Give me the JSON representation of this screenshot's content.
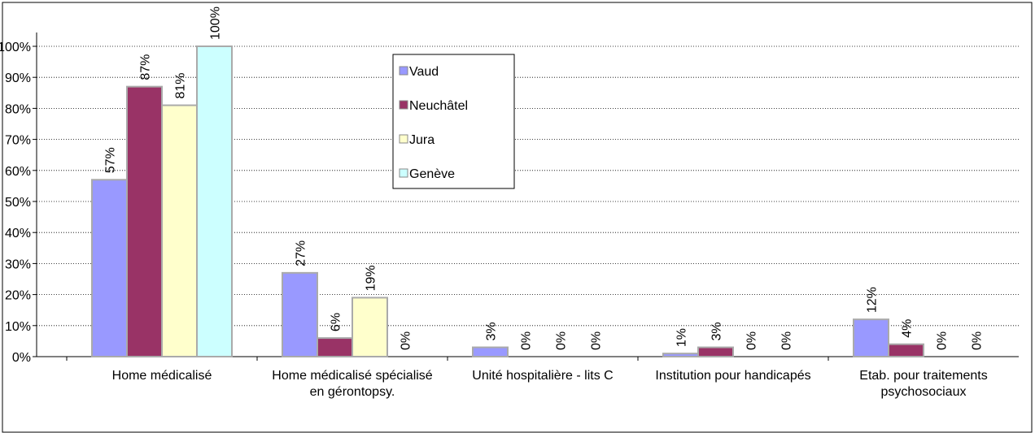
{
  "chart_data": {
    "type": "bar",
    "categories": [
      "Home médicalisé",
      "Home médicalisé spécialisé en gérontopsy.",
      "Unité hospitalière - lits C",
      "Institution pour handicapés",
      "Etab. pour traitements psychosociaux"
    ],
    "series": [
      {
        "name": "Vaud",
        "color": "#9999ff",
        "values": [
          57,
          27,
          3,
          1,
          12
        ],
        "value_labels": [
          "57%",
          "27%",
          "3%",
          "1%",
          "12%"
        ]
      },
      {
        "name": "Neuchâtel",
        "color": "#993366",
        "values": [
          87,
          6,
          0,
          3,
          4
        ],
        "value_labels": [
          "87%",
          "6%",
          "0%",
          "3%",
          "4%"
        ]
      },
      {
        "name": "Jura",
        "color": "#ffffcc",
        "values": [
          81,
          19,
          0,
          0,
          0
        ],
        "value_labels": [
          "81%",
          "19%",
          "0%",
          "0%",
          "0%"
        ]
      },
      {
        "name": "Genève",
        "color": "#ccffff",
        "values": [
          100,
          0,
          0,
          0,
          0
        ],
        "value_labels": [
          "100%",
          "0%",
          "0%",
          "0%",
          "0%"
        ]
      }
    ],
    "ylim": [
      0,
      100
    ],
    "yticks": [
      {
        "value": 0,
        "label": "0%"
      },
      {
        "value": 10,
        "label": "10%"
      },
      {
        "value": 20,
        "label": "20%"
      },
      {
        "value": 30,
        "label": "30%"
      },
      {
        "value": 40,
        "label": "40%"
      },
      {
        "value": 50,
        "label": "50%"
      },
      {
        "value": 60,
        "label": "60%"
      },
      {
        "value": 70,
        "label": "70%"
      },
      {
        "value": 80,
        "label": "80%"
      },
      {
        "value": 90,
        "label": "90%"
      },
      {
        "value": 100,
        "label": "100%"
      }
    ],
    "grid": true,
    "legend": "top-center"
  }
}
